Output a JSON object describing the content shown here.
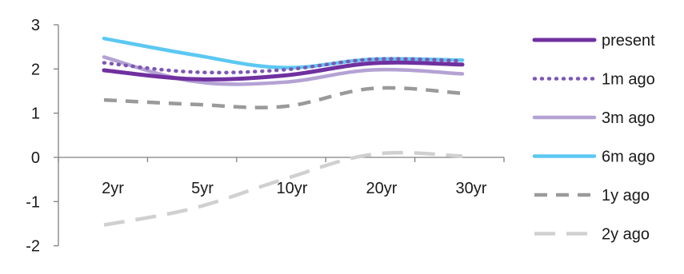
{
  "chart_data": {
    "type": "line",
    "title": "",
    "xlabel": "",
    "ylabel": "",
    "categories": [
      "2yr",
      "5yr",
      "10yr",
      "20yr",
      "30yr"
    ],
    "ylim": [
      -2,
      3
    ],
    "yticks": [
      "3",
      "2",
      "1",
      "0",
      "-1",
      "-2"
    ],
    "grid": false,
    "legend_position": "right",
    "series": [
      {
        "name": "present",
        "values": [
          1.97,
          1.77,
          1.85,
          2.13,
          2.1
        ],
        "color": "#7030a0",
        "style": "solid",
        "weight": "bold"
      },
      {
        "name": "1m ago",
        "values": [
          2.14,
          1.93,
          1.98,
          2.22,
          2.18
        ],
        "color": "#7e57b4",
        "style": "dotted",
        "weight": "normal"
      },
      {
        "name": "3m ago",
        "values": [
          2.27,
          1.72,
          1.7,
          1.98,
          1.89
        ],
        "color": "#b4a2d4",
        "style": "solid",
        "weight": "normal"
      },
      {
        "name": "6m ago",
        "values": [
          2.69,
          2.32,
          2.03,
          2.22,
          2.2
        ],
        "color": "#5bc8f2",
        "style": "solid",
        "weight": "normal"
      },
      {
        "name": "1y ago",
        "values": [
          1.3,
          1.2,
          1.15,
          1.56,
          1.45
        ],
        "color": "#9a9a9a",
        "style": "dashed",
        "weight": "normal"
      },
      {
        "name": "2y ago",
        "values": [
          -1.53,
          -1.15,
          -0.5,
          0.07,
          0.03
        ],
        "color": "#d0d0d0",
        "style": "longdash",
        "weight": "normal"
      }
    ]
  }
}
